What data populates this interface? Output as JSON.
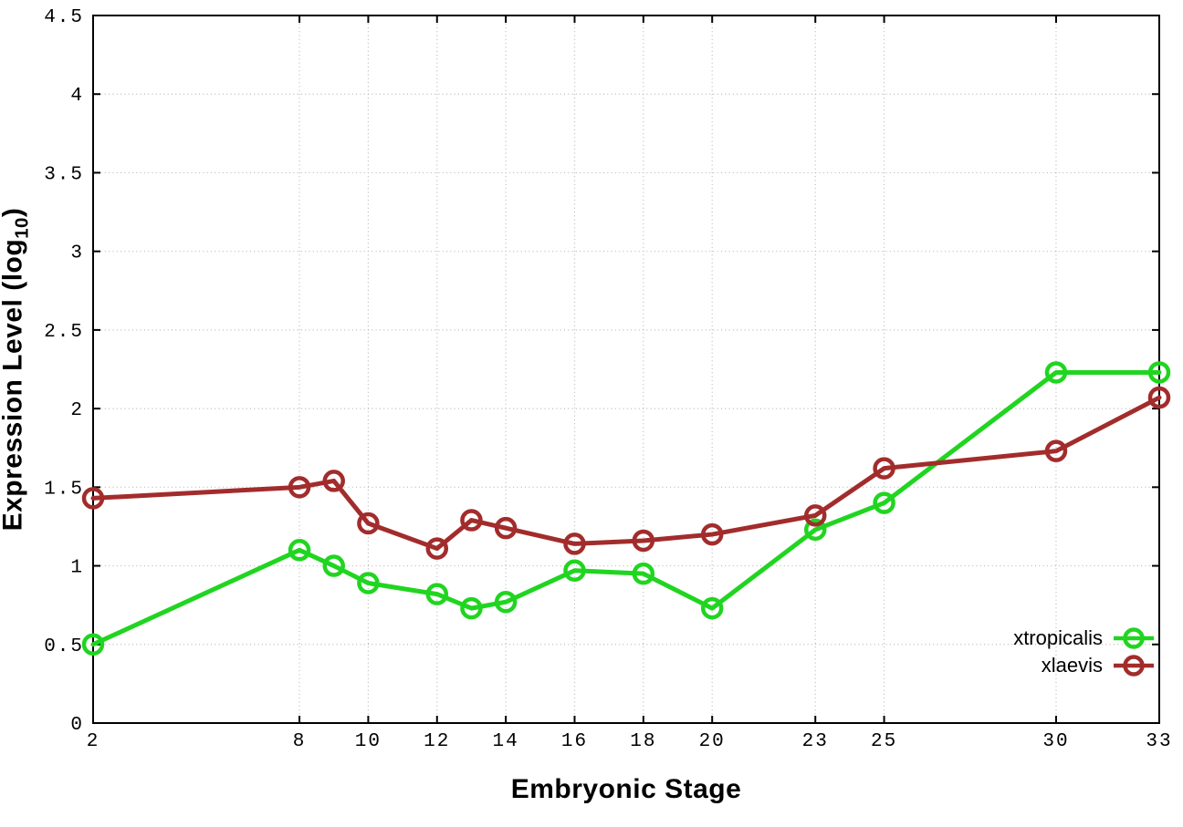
{
  "chart_data": {
    "type": "line",
    "title": "",
    "xlabel": "Embryonic Stage",
    "ylabel": "Expression Level (log10)",
    "ylabel_parts": {
      "main": "Expression Level (log",
      "sub": "10",
      "suffix": ")"
    },
    "xlim": [
      2,
      33
    ],
    "ylim": [
      0,
      4.5
    ],
    "grid": true,
    "legend_position": "bottom-right",
    "x_ticks": [
      2,
      8,
      10,
      12,
      14,
      16,
      18,
      20,
      23,
      25,
      30,
      33
    ],
    "x_tick_labels": [
      "2",
      "8",
      "10",
      "12",
      "14",
      "16",
      "18",
      "20",
      "23",
      "25",
      "30",
      "33"
    ],
    "y_ticks": [
      0,
      0.5,
      1,
      1.5,
      2,
      2.5,
      3,
      3.5,
      4,
      4.5
    ],
    "y_tick_labels": [
      "0",
      "0.5",
      "1",
      "1.5",
      "2",
      "2.5",
      "3",
      "3.5",
      "4",
      "4.5"
    ],
    "x": [
      2,
      8,
      9,
      10,
      12,
      13,
      14,
      16,
      18,
      20,
      23,
      25,
      30,
      33
    ],
    "series": [
      {
        "name": "xtropicalis",
        "color": "#20d520",
        "values": [
          0.5,
          1.1,
          1.0,
          0.89,
          0.82,
          0.73,
          0.77,
          0.97,
          0.95,
          0.73,
          1.23,
          1.4,
          2.23,
          2.23
        ]
      },
      {
        "name": "xlaevis",
        "color": "#a22c2c",
        "values": [
          1.43,
          1.5,
          1.54,
          1.27,
          1.11,
          1.29,
          1.24,
          1.14,
          1.16,
          1.2,
          1.32,
          1.62,
          1.73,
          2.07
        ]
      }
    ],
    "colors": {
      "axis": "#000000",
      "grid": "#b9b9b9",
      "background": "#ffffff"
    }
  }
}
